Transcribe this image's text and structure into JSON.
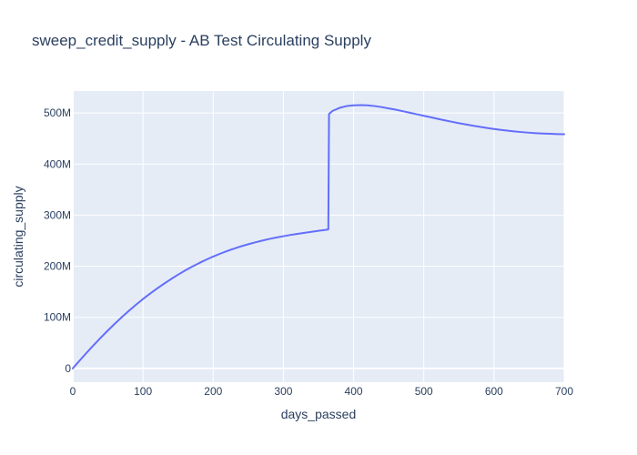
{
  "chart_data": {
    "type": "line",
    "title": "sweep_credit_supply - AB Test Circulating Supply",
    "xlabel": "days_passed",
    "ylabel": "circulating_supply",
    "xlim": [
      0,
      700
    ],
    "ylim": [
      -27000000,
      543000000
    ],
    "x_ticks": [
      0,
      100,
      200,
      300,
      400,
      500,
      600,
      700
    ],
    "x_tick_labels": [
      "0",
      "100",
      "200",
      "300",
      "400",
      "500",
      "600",
      "700"
    ],
    "y_ticks": [
      0,
      100000000,
      200000000,
      300000000,
      400000000,
      500000000
    ],
    "y_tick_labels": [
      "0",
      "100M",
      "200M",
      "300M",
      "400M",
      "500M"
    ],
    "grid": true,
    "colors": {
      "plot_bg": "#e5ecf6",
      "grid": "#ffffff",
      "line": "#636efa",
      "text": "#2a3f5f"
    },
    "series": [
      {
        "x": [
          0,
          10,
          20,
          30,
          40,
          50,
          60,
          70,
          80,
          90,
          100,
          110,
          120,
          130,
          140,
          150,
          160,
          170,
          180,
          190,
          200,
          210,
          220,
          230,
          240,
          250,
          260,
          270,
          280,
          290,
          300,
          310,
          320,
          330,
          340,
          350,
          360,
          364,
          365,
          370,
          380,
          390,
          400,
          410,
          420,
          430,
          440,
          450,
          460,
          470,
          480,
          490,
          500,
          510,
          520,
          530,
          540,
          550,
          560,
          570,
          580,
          590,
          600,
          610,
          620,
          630,
          640,
          650,
          660,
          670,
          680,
          690,
          700
        ],
        "y": [
          0,
          15800000,
          31100000,
          46000000,
          60400000,
          74300000,
          87700000,
          100600000,
          112900000,
          124700000,
          135800000,
          146400000,
          156400000,
          165800000,
          174900000,
          183500000,
          191600000,
          199200000,
          206200000,
          212800000,
          219000000,
          224600000,
          229800000,
          234600000,
          239100000,
          243100000,
          246800000,
          250200000,
          253400000,
          256200000,
          258800000,
          261200000,
          263400000,
          265400000,
          267400000,
          269300000,
          271100000,
          272000000,
          498000000,
          504000000,
          510000000,
          513500000,
          515000000,
          515500000,
          515000000,
          513500000,
          511500000,
          509000000,
          506500000,
          503500000,
          500500000,
          497500000,
          494500000,
          491500000,
          488500000,
          485600000,
          482800000,
          480000000,
          477500000,
          475100000,
          472800000,
          470600000,
          468600000,
          466800000,
          465200000,
          463800000,
          462500000,
          461400000,
          460500000,
          459800000,
          459200000,
          458700000,
          458400000
        ]
      }
    ]
  }
}
